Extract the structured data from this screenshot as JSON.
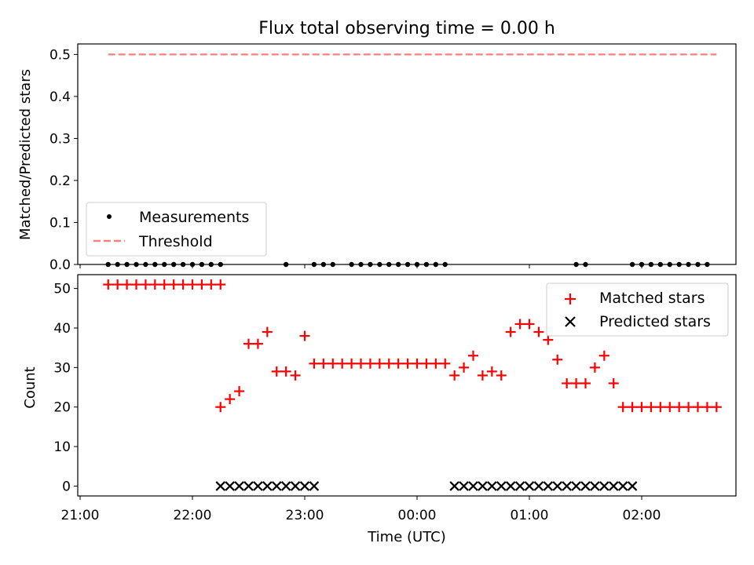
{
  "chart_data": [
    {
      "type": "scatter",
      "title": "Flux total observing time = 0.00 h",
      "xlabel": "",
      "ylabel": "Matched/Predicted stars",
      "ylim": [
        0,
        0.525
      ],
      "yticks": [
        "0.0",
        "0.1",
        "0.2",
        "0.3",
        "0.4",
        "0.5"
      ],
      "legend_position": "lower-left",
      "series": [
        {
          "name": "Measurements",
          "marker": "dot",
          "color": "#000000",
          "x": [
            "21:15",
            "21:20",
            "21:25",
            "21:30",
            "21:35",
            "21:40",
            "21:45",
            "21:50",
            "21:55",
            "22:00",
            "22:05",
            "22:10",
            "22:15",
            "22:50",
            "23:05",
            "23:10",
            "23:15",
            "23:25",
            "23:30",
            "23:35",
            "23:40",
            "23:45",
            "23:50",
            "23:55",
            "00:00",
            "00:05",
            "00:10",
            "00:15",
            "01:25",
            "01:30",
            "01:55",
            "02:00",
            "02:05",
            "02:10",
            "02:15",
            "02:20",
            "02:25",
            "02:30",
            "02:35"
          ],
          "values": [
            0,
            0,
            0,
            0,
            0,
            0,
            0,
            0,
            0,
            0,
            0,
            0,
            0,
            0,
            0,
            0,
            0,
            0,
            0,
            0,
            0,
            0,
            0,
            0,
            0,
            0,
            0,
            0,
            0,
            0,
            0,
            0,
            0,
            0,
            0,
            0,
            0,
            0,
            0
          ]
        },
        {
          "name": "Threshold",
          "style": "dashed-line",
          "color": "#ff7f7f",
          "x": [
            "21:15",
            "02:40"
          ],
          "values": [
            0.5,
            0.5
          ]
        }
      ]
    },
    {
      "type": "scatter",
      "title": "",
      "xlabel": "Time (UTC)",
      "ylabel": "Count",
      "ylim": [
        -2.5,
        53.5
      ],
      "yticks": [
        "0",
        "10",
        "20",
        "30",
        "40",
        "50"
      ],
      "xticks": [
        "21:00",
        "22:00",
        "23:00",
        "00:00",
        "01:00",
        "02:00"
      ],
      "legend_position": "upper-right",
      "series": [
        {
          "name": "Matched stars",
          "marker": "plus",
          "color": "#ff0000",
          "x": [
            "21:15",
            "21:20",
            "21:25",
            "21:30",
            "21:35",
            "21:40",
            "21:45",
            "21:50",
            "21:55",
            "22:00",
            "22:05",
            "22:10",
            "22:15",
            "22:15",
            "22:20",
            "22:25",
            "22:30",
            "22:35",
            "22:40",
            "22:45",
            "22:50",
            "22:55",
            "23:00",
            "23:05",
            "23:10",
            "23:15",
            "23:20",
            "23:25",
            "23:30",
            "23:35",
            "23:40",
            "23:45",
            "23:50",
            "23:55",
            "00:00",
            "00:05",
            "00:10",
            "00:15",
            "00:20",
            "00:25",
            "00:30",
            "00:35",
            "00:40",
            "00:45",
            "00:50",
            "00:55",
            "01:00",
            "01:05",
            "01:10",
            "01:15",
            "01:20",
            "01:25",
            "01:30",
            "01:35",
            "01:40",
            "01:45",
            "01:50",
            "01:55",
            "02:00",
            "02:05",
            "02:10",
            "02:15",
            "02:20",
            "02:25",
            "02:30",
            "02:35",
            "02:40"
          ],
          "values": [
            51,
            51,
            51,
            51,
            51,
            51,
            51,
            51,
            51,
            51,
            51,
            51,
            51,
            20,
            22,
            24,
            36,
            36,
            39,
            29,
            29,
            28,
            38,
            31,
            31,
            31,
            31,
            31,
            31,
            31,
            31,
            31,
            31,
            31,
            31,
            31,
            31,
            31,
            28,
            30,
            33,
            28,
            29,
            28,
            39,
            41,
            41,
            39,
            37,
            32,
            26,
            26,
            26,
            30,
            33,
            26,
            20,
            20,
            20,
            20,
            20,
            20,
            20,
            20,
            20,
            20,
            20
          ]
        },
        {
          "name": "Predicted stars",
          "marker": "x",
          "color": "#000000",
          "x": [
            "22:15",
            "22:20",
            "22:25",
            "22:30",
            "22:35",
            "22:40",
            "22:45",
            "22:50",
            "22:55",
            "23:00",
            "23:05",
            "00:20",
            "00:25",
            "00:30",
            "00:35",
            "00:40",
            "00:45",
            "00:50",
            "00:55",
            "01:00",
            "01:05",
            "01:10",
            "01:15",
            "01:20",
            "01:25",
            "01:30",
            "01:35",
            "01:40",
            "01:45",
            "01:50",
            "01:55"
          ],
          "values": [
            0,
            0,
            0,
            0,
            0,
            0,
            0,
            0,
            0,
            0,
            0,
            0,
            0,
            0,
            0,
            0,
            0,
            0,
            0,
            0,
            0,
            0,
            0,
            0,
            0,
            0,
            0,
            0,
            0,
            0,
            0
          ]
        }
      ]
    }
  ]
}
